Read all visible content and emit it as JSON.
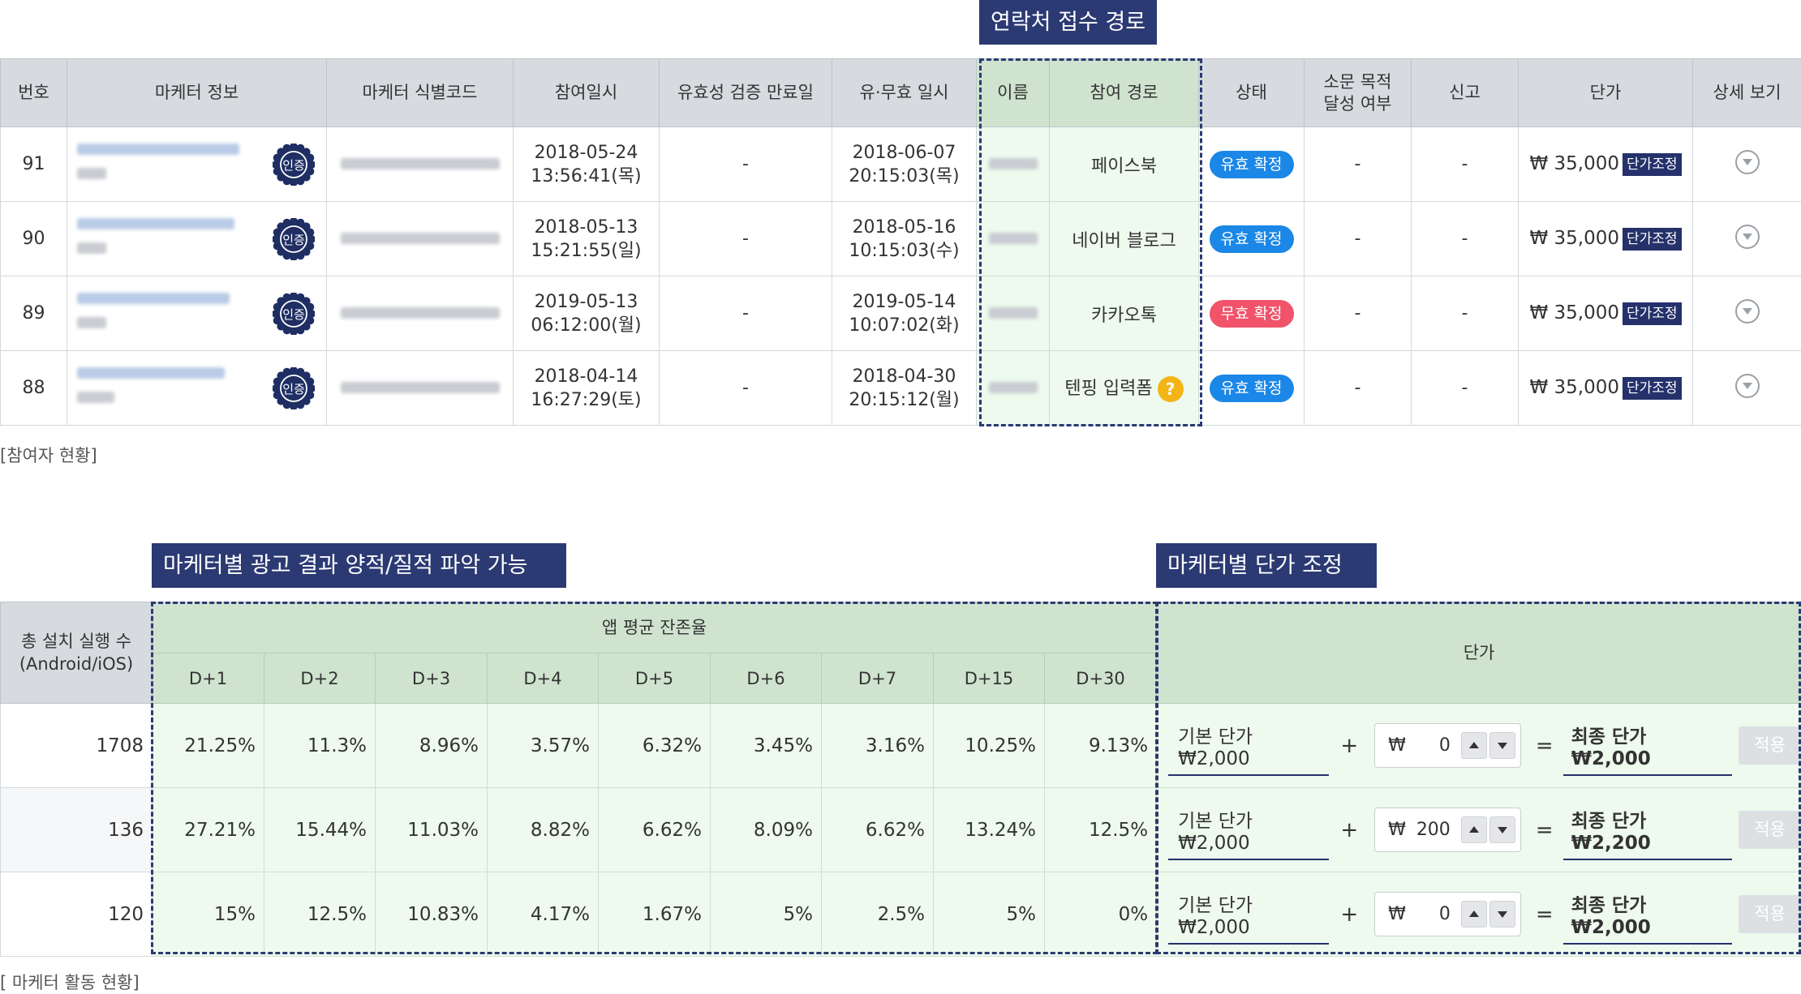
{
  "callouts": {
    "contact": "연락처 접수 경로",
    "results": "마케터별 광고 결과 양적/질적 파악 가능",
    "unit_price": "마케터별 단가 조정"
  },
  "participants": {
    "headers": {
      "no": "번호",
      "marketer_info": "마케터 정보",
      "marketer_code": "마케터 식별코드",
      "joined_at": "참여일시",
      "validity_end": "유효성 검증 만료일",
      "paid_free_date": "유·무효 일시",
      "name": "이름",
      "route": "참여 경로",
      "status": "상태",
      "goal": "소문 목적 달성 여부",
      "report": "신고",
      "price": "단가",
      "detail": "상세 보기"
    },
    "cert_label": "인증",
    "adjust_label": "단가조정",
    "rows": [
      {
        "no": "91",
        "joined_date": "2018-05-24",
        "joined_time": "13:56:41(목)",
        "validity": "-",
        "paid_date": "2018-06-07",
        "paid_time": "20:15:03(목)",
        "route": "페이스북",
        "status": "유효 확정",
        "status_color": "#1b87e6",
        "goal": "-",
        "report": "-",
        "price": "₩ 35,000"
      },
      {
        "no": "90",
        "joined_date": "2018-05-13",
        "joined_time": "15:21:55(일)",
        "validity": "-",
        "paid_date": "2018-05-16",
        "paid_time": "10:15:03(수)",
        "route": "네이버 블로그",
        "status": "유효 확정",
        "status_color": "#1b87e6",
        "goal": "-",
        "report": "-",
        "price": "₩ 35,000"
      },
      {
        "no": "89",
        "joined_date": "2019-05-13",
        "joined_time": "06:12:00(월)",
        "validity": "-",
        "paid_date": "2019-05-14",
        "paid_time": "10:07:02(화)",
        "route": "카카오톡",
        "status": "무효 확정",
        "status_color": "#f0536a",
        "goal": "-",
        "report": "-",
        "price": "₩ 35,000"
      },
      {
        "no": "88",
        "joined_date": "2018-04-14",
        "joined_time": "16:27:29(토)",
        "validity": "-",
        "paid_date": "2018-04-30",
        "paid_time": "20:15:12(월)",
        "route": "텐핑 입력폼",
        "route_help": "?",
        "status": "유효 확정",
        "status_color": "#1b87e6",
        "goal": "-",
        "report": "-",
        "price": "₩ 35,000"
      }
    ],
    "caption": "[참여자 현황]"
  },
  "marketers": {
    "headers": {
      "installs_line1": "총 설치 실행 수",
      "installs_line2": "(Android/iOS)",
      "retention": "앱 평균 잔존율",
      "days": [
        "D+1",
        "D+2",
        "D+3",
        "D+4",
        "D+5",
        "D+6",
        "D+7",
        "D+15",
        "D+30"
      ],
      "unit_price": "단가"
    },
    "rows": [
      {
        "installs": "1708",
        "retention": [
          "21.25%",
          "11.3%",
          "8.96%",
          "3.57%",
          "6.32%",
          "3.45%",
          "3.16%",
          "10.25%",
          "9.13%"
        ],
        "base": "기본 단가 ₩2,000",
        "plus": "+",
        "currency": "₩",
        "adjust": "0",
        "equals": "=",
        "final": "최종 단가 ₩2,000",
        "apply": "적용"
      },
      {
        "installs": "136",
        "retention": [
          "27.21%",
          "15.44%",
          "11.03%",
          "8.82%",
          "6.62%",
          "8.09%",
          "6.62%",
          "13.24%",
          "12.5%"
        ],
        "base": "기본 단가 ₩2,000",
        "plus": "+",
        "currency": "₩",
        "adjust": "200",
        "equals": "=",
        "final": "최종 단가 ₩2,200",
        "apply": "적용"
      },
      {
        "installs": "120",
        "retention": [
          "15%",
          "12.5%",
          "10.83%",
          "4.17%",
          "1.67%",
          "5%",
          "2.5%",
          "5%",
          "0%"
        ],
        "base": "기본 단가 ₩2,000",
        "plus": "+",
        "currency": "₩",
        "adjust": "0",
        "equals": "=",
        "final": "최종 단가 ₩2,000",
        "apply": "적용"
      }
    ],
    "caption": "[ 마케터 활동 현황]"
  },
  "colors": {
    "navy": "#2b3a73",
    "highlight_bg": "#edfaed",
    "header_bg": "#d7dbe0",
    "valid": "#1b87e6",
    "invalid": "#f0536a",
    "help": "#f3b515"
  }
}
